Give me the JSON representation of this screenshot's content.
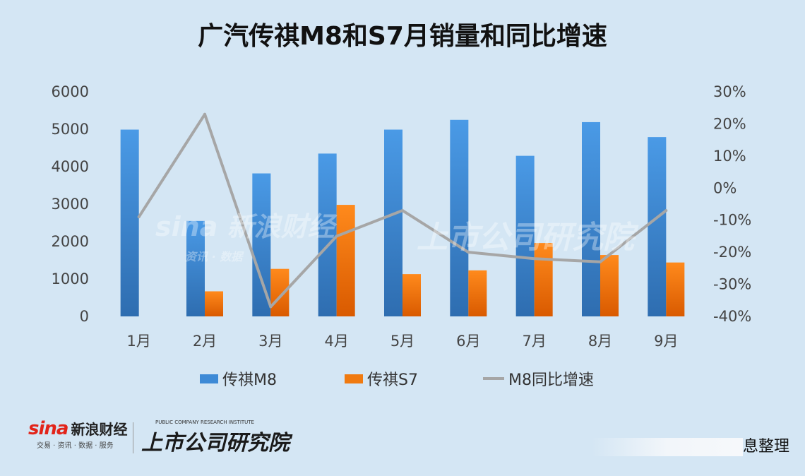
{
  "title": "广汽传祺M8和S7月销量和同比增速",
  "chart_data": {
    "type": "bar",
    "categories": [
      "1月",
      "2月",
      "3月",
      "4月",
      "5月",
      "6月",
      "7月",
      "8月",
      "9月"
    ],
    "series": [
      {
        "name": "传祺M8",
        "type": "bar",
        "axis": "left",
        "color": "#3d8ad6",
        "values": [
          4990,
          2550,
          3820,
          4350,
          4990,
          5250,
          4290,
          5190,
          4790
        ]
      },
      {
        "name": "传祺S7",
        "type": "bar",
        "axis": "left",
        "color": "#f07a10",
        "values": [
          null,
          670,
          1270,
          2980,
          1130,
          1230,
          1960,
          1640,
          1440
        ]
      },
      {
        "name": "M8同比增速",
        "type": "line",
        "axis": "right",
        "color": "#a6a6a6",
        "values": [
          -9,
          23,
          -37,
          -15,
          -7,
          -20,
          -22,
          -23,
          -7
        ]
      }
    ],
    "y_left": {
      "min": 0,
      "max": 6000,
      "ticks": [
        "0",
        "1000",
        "2000",
        "3000",
        "4000",
        "5000",
        "6000"
      ]
    },
    "y_right": {
      "min": -40,
      "max": 30,
      "ticks": [
        "-40%",
        "-30%",
        "-20%",
        "-10%",
        "0%",
        "10%",
        "20%",
        "30%"
      ]
    },
    "grid": false,
    "legend_position": "bottom"
  },
  "legend": [
    "传祺M8",
    "传祺S7",
    "M8同比增速"
  ],
  "footer": {
    "sina_mark": "sina",
    "sina_name": "新浪财经",
    "sina_sub": "交易 · 资讯 · 数据 · 服务",
    "inst_sub": "PUBLIC COMPANY RESEARCH INSTITUTE",
    "inst_name": "上市公司研究院",
    "source": "息整理"
  },
  "watermark": {
    "sina": "sina 新浪财经",
    "sina_sub": "资讯 · 数据",
    "inst": "上市公司研究院"
  }
}
